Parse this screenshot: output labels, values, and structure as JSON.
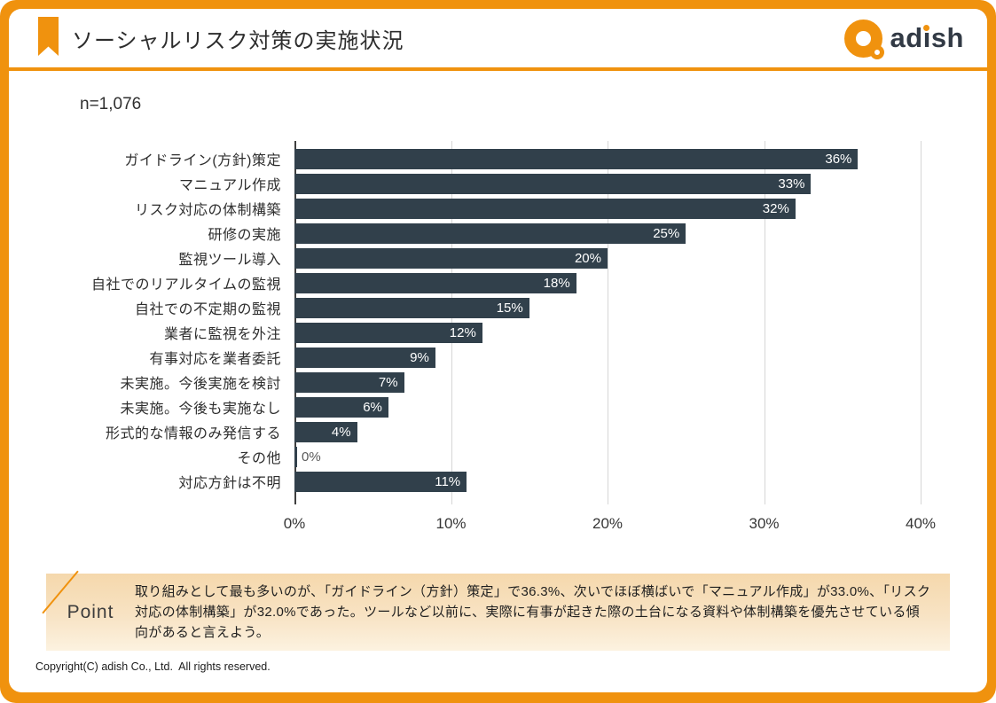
{
  "header": {
    "title": "ソーシャルリスク対策の実施状況",
    "logo_text": "adish"
  },
  "sample_label": "n=1,076",
  "chart_data": {
    "type": "bar",
    "orientation": "horizontal",
    "title": "ソーシャルリスク対策の実施状況",
    "sample_size": "n=1,076",
    "categories": [
      "ガイドライン(方針)策定",
      "マニュアル作成",
      "リスク対応の体制構築",
      "研修の実施",
      "監視ツール導入",
      "自社でのリアルタイムの監視",
      "自社での不定期の監視",
      "業者に監視を外注",
      "有事対応を業者委託",
      "未実施。今後実施を検討",
      "未実施。今後も実施なし",
      "形式的な情報のみ発信する",
      "その他",
      "対応方針は不明"
    ],
    "values": [
      36,
      33,
      32,
      25,
      20,
      18,
      15,
      12,
      9,
      7,
      6,
      4,
      0,
      11
    ],
    "value_labels": [
      "36%",
      "33%",
      "32%",
      "25%",
      "20%",
      "18%",
      "15%",
      "12%",
      "9%",
      "7%",
      "6%",
      "4%",
      "0%",
      "11%"
    ],
    "xlim": [
      0,
      40
    ],
    "x_ticks": [
      "0%",
      "10%",
      "20%",
      "30%",
      "40%"
    ],
    "grid": true,
    "legend": false,
    "bar_color": "#31404B",
    "value_label_color_inside": "#FFFFFF",
    "value_label_color_outside": "#595959"
  },
  "point": {
    "label": "Point",
    "text": "取り組みとして最も多いのが、「ガイドライン（方針）策定」で36.3%、次いでほぼ横ばいで「マニュアル作成」が33.0%、「リスク対応の体制構築」が32.0%であった。ツールなど以前に、実際に有事が起きた際の土台になる資料や体制構築を優先させている傾向があると言えよう。"
  },
  "footer": {
    "copyright": "Copyright(C) adish Co., Ltd.  All rights reserved."
  },
  "colors": {
    "accent": "#F0920E",
    "bar": "#31404B",
    "point_background": "#F5D8AC",
    "gridline": "#D6D6D6"
  }
}
